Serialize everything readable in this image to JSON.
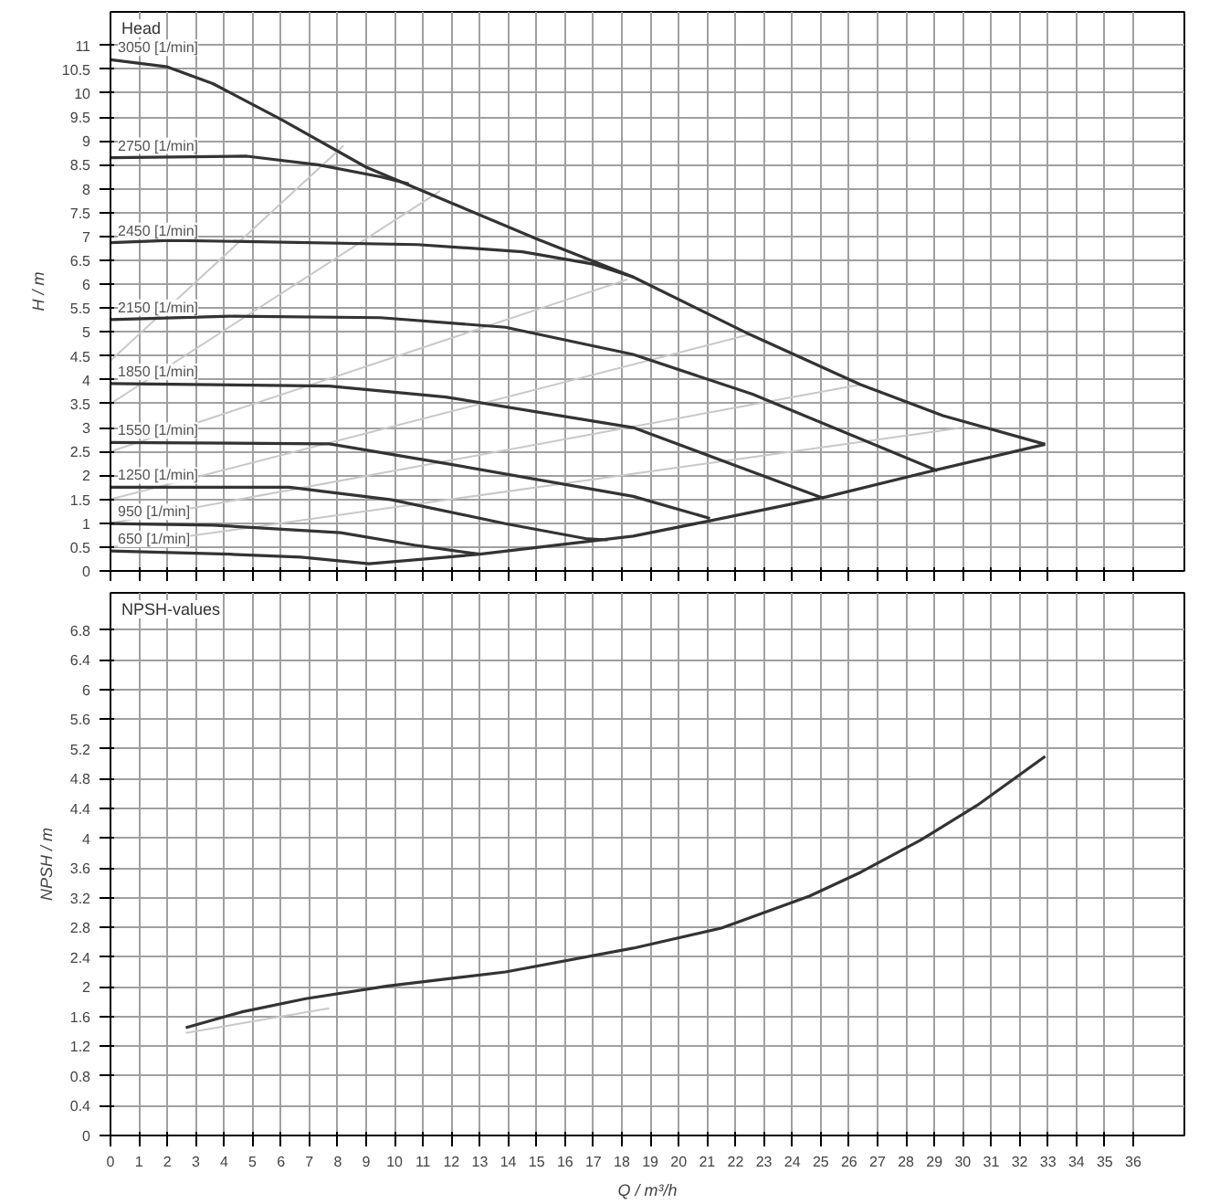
{
  "chart_data": [
    {
      "type": "line",
      "title": "Head",
      "ylabel": "H / m",
      "xlim": [
        0,
        37.8
      ],
      "ylim": [
        0,
        11.7
      ],
      "xticks": [
        0,
        1,
        2,
        3,
        4,
        5,
        6,
        7,
        8,
        9,
        10,
        11,
        12,
        13,
        14,
        15,
        16,
        17,
        18,
        19,
        20,
        21,
        22,
        23,
        24,
        25,
        26,
        27,
        28,
        29,
        30,
        31,
        32,
        33,
        34,
        35,
        36
      ],
      "yticks": [
        0,
        0.5,
        1,
        1.5,
        2,
        2.5,
        3,
        3.5,
        4,
        4.5,
        5,
        5.5,
        6,
        6.5,
        7,
        7.5,
        8,
        8.5,
        9,
        9.5,
        10,
        10.5,
        11
      ],
      "grid": true,
      "tick_labels": "y",
      "series": [
        {
          "color": "#c8c8c8",
          "x": [
            0,
            8.2
          ],
          "values": [
            4.4,
            8.9
          ]
        },
        {
          "color": "#c8c8c8",
          "x": [
            0,
            11.6
          ],
          "values": [
            3.5,
            7.95
          ]
        },
        {
          "color": "#c8c8c8",
          "x": [
            0,
            18.2
          ],
          "values": [
            2.5,
            6.1
          ]
        },
        {
          "color": "#c8c8c8",
          "x": [
            0,
            22.5
          ],
          "values": [
            1.5,
            4.95
          ]
        },
        {
          "color": "#c8c8c8",
          "x": [
            0,
            26.4
          ],
          "values": [
            1.0,
            3.9
          ]
        },
        {
          "color": "#c8c8c8",
          "x": [
            0,
            30
          ],
          "values": [
            0.5,
            3.0
          ]
        },
        {
          "name": "3050 [1/min]",
          "color": "#333333",
          "x": [
            0,
            2,
            3.6,
            6,
            9,
            12,
            15,
            18.4,
            22.5,
            26.4,
            29.3,
            32.9
          ],
          "values": [
            10.7,
            10.55,
            10.2,
            9.45,
            8.45,
            7.7,
            6.95,
            6.15,
            4.95,
            3.9,
            3.25,
            2.65
          ]
        },
        {
          "name": "2750 [1/min]",
          "color": "#333333",
          "x": [
            0,
            4.8,
            7.3,
            9.5,
            10.5
          ],
          "values": [
            8.65,
            8.68,
            8.5,
            8.25,
            8.1
          ]
        },
        {
          "name": "2450 [1/min]",
          "color": "#333333",
          "x": [
            0,
            2.1,
            10.8,
            14.5,
            17,
            18.4
          ],
          "values": [
            6.87,
            6.92,
            6.83,
            6.68,
            6.42,
            6.15
          ]
        },
        {
          "name": "2150 [1/min]",
          "color": "#333333",
          "x": [
            0,
            4.2,
            9.5,
            13.9,
            18.4,
            22.6,
            29.1
          ],
          "values": [
            5.26,
            5.33,
            5.3,
            5.1,
            4.53,
            3.7,
            2.1
          ]
        },
        {
          "name": "1850 [1/min]",
          "color": "#333333",
          "x": [
            0,
            7.7,
            11.8,
            18.4,
            25.1
          ],
          "values": [
            3.92,
            3.87,
            3.64,
            3.0,
            1.52
          ]
        },
        {
          "name": "1550 [1/min]",
          "color": "#333333",
          "x": [
            0,
            7.7,
            11.8,
            18.4,
            21.1
          ],
          "values": [
            2.69,
            2.66,
            2.25,
            1.56,
            1.1
          ]
        },
        {
          "name": "1250 [1/min]",
          "color": "#333333",
          "x": [
            0,
            6.3,
            9.9,
            13.9,
            16.8,
            17.5
          ],
          "values": [
            1.75,
            1.75,
            1.49,
            0.99,
            0.67,
            0.65
          ]
        },
        {
          "name": "950 [1/min]",
          "color": "#333333",
          "x": [
            0,
            3.6,
            8.1,
            10.7,
            13
          ],
          "values": [
            0.99,
            0.96,
            0.8,
            0.54,
            0.35
          ]
        },
        {
          "name": "650 [1/min]",
          "color": "#333333",
          "x": [
            0,
            4.2,
            6.7,
            9.1,
            13,
            18.4,
            21.1,
            25.2,
            29.1,
            32.9
          ],
          "values": [
            0.42,
            0.35,
            0.29,
            0.15,
            0.35,
            0.73,
            1.05,
            1.55,
            2.12,
            2.65
          ]
        }
      ]
    },
    {
      "type": "line",
      "title": "NPSH-values",
      "ylabel": "NPSH / m",
      "xlabel": "Q / m³/h",
      "xlim": [
        0,
        37.8
      ],
      "ylim": [
        0,
        7.3
      ],
      "xticks": [
        0,
        1,
        2,
        3,
        4,
        5,
        6,
        7,
        8,
        9,
        10,
        11,
        12,
        13,
        14,
        15,
        16,
        17,
        18,
        19,
        20,
        21,
        22,
        23,
        24,
        25,
        26,
        27,
        28,
        29,
        30,
        31,
        32,
        33,
        34,
        35,
        36
      ],
      "yticks": [
        0,
        0.4,
        0.8,
        1.2,
        1.6,
        2,
        2.4,
        2.8,
        3.2,
        3.6,
        4,
        4.4,
        4.8,
        5.2,
        5.6,
        6,
        6.4,
        6.8
      ],
      "grid": true,
      "series": [
        {
          "color": "#c8c8c8",
          "x": [
            2.65,
            7.7
          ],
          "values": [
            1.38,
            1.71
          ]
        },
        {
          "color": "#333333",
          "x": [
            2.65,
            4.6,
            6.87,
            9.75,
            13.9,
            18.4,
            21.5,
            24.6,
            26.4,
            28.5,
            30.5,
            32.9
          ],
          "values": [
            1.45,
            1.66,
            1.84,
            2.01,
            2.2,
            2.52,
            2.79,
            3.22,
            3.54,
            3.97,
            4.44,
            5.1
          ]
        }
      ]
    }
  ]
}
